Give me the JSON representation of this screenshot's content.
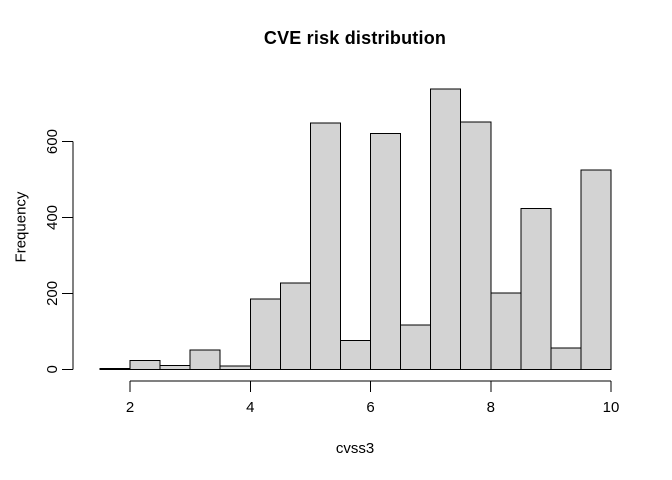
{
  "chart_data": {
    "type": "bar",
    "subtype": "histogram",
    "title": "CVE risk distribution",
    "xlabel": "cvss3",
    "ylabel": "Frequency",
    "bin_breaks": [
      1.5,
      2.0,
      2.5,
      3.0,
      3.5,
      4.0,
      4.5,
      5.0,
      5.5,
      6.0,
      6.5,
      7.0,
      7.5,
      8.0,
      8.5,
      9.0,
      9.5,
      10.0
    ],
    "counts": [
      2,
      23,
      10,
      51,
      9,
      185,
      227,
      649,
      76,
      622,
      117,
      738,
      651,
      201,
      424,
      56,
      525
    ],
    "x_ticks": [
      2,
      4,
      6,
      8,
      10
    ],
    "y_ticks": [
      0,
      200,
      400,
      600
    ],
    "xlim": [
      1.5,
      10
    ],
    "ylim": [
      0,
      738
    ],
    "grid": false,
    "legend": false,
    "colors": {
      "bar_fill": "#d3d3d3",
      "bar_stroke": "#000000",
      "axis": "#000000",
      "text": "#000000",
      "background": "#ffffff"
    }
  }
}
